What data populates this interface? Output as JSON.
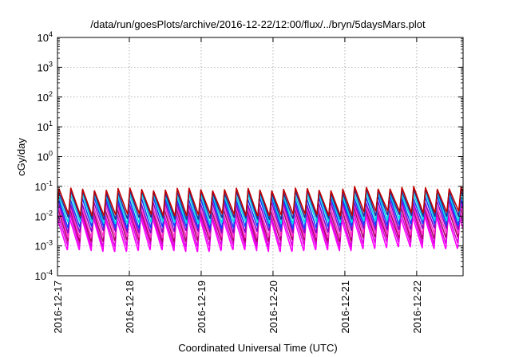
{
  "chart_data": {
    "type": "line",
    "title": "/data/run/goesPlots/archive/2016-12-22/12:00/flux/../bryn/5daysMars.plot",
    "xlabel": "Coordinated Universal Time (UTC)",
    "ylabel": "cGy/day",
    "yscale": "log",
    "ylim": [
      0.0001,
      10000
    ],
    "xlim": [
      "2016-12-17 00:00",
      "2016-12-22 15:30"
    ],
    "x_ticks": [
      "2016-12-17",
      "2016-12-18",
      "2016-12-19",
      "2016-12-20",
      "2016-12-21",
      "2016-12-22"
    ],
    "y_ticks": [
      {
        "base": "10",
        "exp": "-4"
      },
      {
        "base": "10",
        "exp": "-3"
      },
      {
        "base": "10",
        "exp": "-2"
      },
      {
        "base": "10",
        "exp": "-1"
      },
      {
        "base": "10",
        "exp": "0"
      },
      {
        "base": "10",
        "exp": "1"
      },
      {
        "base": "10",
        "exp": "2"
      },
      {
        "base": "10",
        "exp": "3"
      },
      {
        "base": "10",
        "exp": "4"
      }
    ],
    "grid": true,
    "legend": "none",
    "series_description": "Sawtooth dose-rate curves repeating about every 4 hours (~34 cycles across the window)",
    "period_hours": 3.95,
    "series": [
      {
        "color": "#ff00ff",
        "peak": 0.0095,
        "trough": 0.00075
      },
      {
        "color": "#dd00dd",
        "peak": 0.013,
        "trough": 0.0011
      },
      {
        "color": "#b0006a",
        "peak": 0.018,
        "trough": 0.0016
      },
      {
        "color": "#ff33cc",
        "peak": 0.024,
        "trough": 0.0022
      },
      {
        "color": "#8a00c8",
        "peak": 0.032,
        "trough": 0.0032
      },
      {
        "color": "#1040ff",
        "peak": 0.045,
        "trough": 0.0045
      },
      {
        "color": "#00d8e8",
        "peak": 0.06,
        "trough": 0.0065
      },
      {
        "color": "#2030a0",
        "peak": 0.075,
        "trough": 0.009
      },
      {
        "color": "#c00000",
        "peak": 0.088,
        "trough": 0.012
      }
    ],
    "colors": {
      "axis": "#000000",
      "grid": "#a0a0a0",
      "background": "#ffffff"
    }
  }
}
